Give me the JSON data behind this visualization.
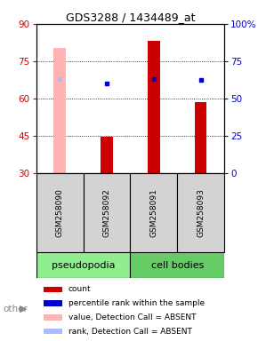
{
  "title": "GDS3288 / 1434489_at",
  "samples": [
    "GSM258090",
    "GSM258092",
    "GSM258091",
    "GSM258093"
  ],
  "ylim_left": [
    30,
    90
  ],
  "ylim_right": [
    0,
    100
  ],
  "yticks_left": [
    30,
    45,
    60,
    75,
    90
  ],
  "yticks_right": [
    0,
    25,
    50,
    75,
    100
  ],
  "bar_values": [
    null,
    44.5,
    83.0,
    58.5
  ],
  "bar_absent_values": [
    80.5,
    null,
    null,
    null
  ],
  "bar_color_present": "#cc0000",
  "bar_color_absent": "#ffb3b3",
  "rank_dots_present": [
    null,
    60.0,
    63.0,
    62.5
  ],
  "rank_dot_absent": 63.0,
  "rank_dot_absent_color": "#aabbff",
  "rank_dot_present_color": "#0000cc",
  "bar_bottom": 30,
  "bar_width": 0.25,
  "xlim": [
    -0.5,
    3.5
  ],
  "x_positions": [
    0,
    1,
    2,
    3
  ],
  "grid_lines": [
    45,
    60,
    75
  ],
  "legend_items": [
    {
      "color": "#cc0000",
      "label": "count"
    },
    {
      "color": "#0000cc",
      "label": "percentile rank within the sample"
    },
    {
      "color": "#ffb3b3",
      "label": "value, Detection Call = ABSENT"
    },
    {
      "color": "#aabbff",
      "label": "rank, Detection Call = ABSENT"
    }
  ],
  "group_label_1": "pseudopodia",
  "group_label_2": "cell bodies",
  "group_color_1": "#90ee90",
  "group_color_2": "#66cc66",
  "other_label": "other",
  "ylabel_left_color": "#cc0000",
  "ylabel_right_color": "#0000cc",
  "sample_box_color": "#d3d3d3",
  "title_fontsize": 9,
  "tick_fontsize": 7.5,
  "sample_fontsize": 6.5,
  "group_fontsize": 8,
  "legend_fontsize": 6.5
}
